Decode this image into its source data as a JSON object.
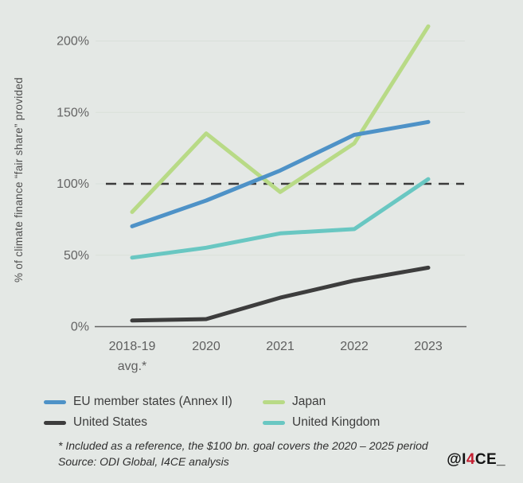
{
  "chart_data": {
    "type": "line",
    "title": "",
    "ylabel": "% of climate finance “fair share” provided",
    "xlabel": "",
    "unit": "%",
    "categories": [
      "2018-19 avg.*",
      "2020",
      "2021",
      "2022",
      "2023"
    ],
    "x_tick_lines": [
      [
        "2018-19",
        "avg.*"
      ],
      [
        "2020"
      ],
      [
        "2021"
      ],
      [
        "2022"
      ],
      [
        "2023"
      ]
    ],
    "y_ticks": [
      0,
      50,
      100,
      150,
      200
    ],
    "y_tick_labels": [
      "0%",
      "50%",
      "100%",
      "150%",
      "200%"
    ],
    "ylim": [
      0,
      215
    ],
    "grid": "horizontal",
    "legend_position": "bottom-left",
    "reference_line": {
      "value": 100,
      "style": "dashed",
      "color": "#3b3b3b"
    },
    "series": [
      {
        "name": "EU member states (Annex II)",
        "color": "#4e92c7",
        "values": [
          70,
          88,
          109,
          134,
          143
        ]
      },
      {
        "name": "Japan",
        "color": "#b8da86",
        "values": [
          80,
          135,
          94,
          128,
          210
        ]
      },
      {
        "name": "United States",
        "color": "#3d3d3d",
        "values": [
          4,
          5,
          20,
          32,
          41
        ]
      },
      {
        "name": "United Kingdom",
        "color": "#69c7c2",
        "values": [
          48,
          55,
          65,
          68,
          103
        ]
      }
    ]
  },
  "footnote": {
    "line1": "* Included as a reference, the $100 bn. goal covers the 2020 – 2025 period",
    "line2": "Source: ODI Global, I4CE analysis"
  },
  "branding": {
    "handle_prefix": "@I",
    "handle_highlight": "4",
    "handle_suffix": "CE_",
    "highlight_color": "#c41e30"
  },
  "colors": {
    "background": "#e4e8e5",
    "grid": "#d9dfda",
    "axis": "#636363",
    "tick_text": "#646464",
    "axis_title": "#4f4f4f",
    "legend_text": "#3c3c3c",
    "footnote_text": "#2f2f2f"
  }
}
